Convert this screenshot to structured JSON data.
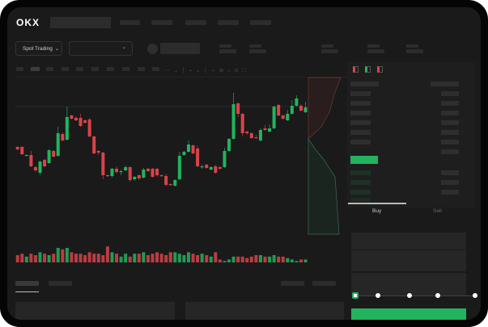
{
  "header": {
    "logo": "OKX"
  },
  "market": {
    "mode_label": "Spot Trading",
    "pair_dropdown": ""
  },
  "order_form": {
    "tabs": [
      {
        "label": "Buy",
        "active": true
      },
      {
        "label": "Sell",
        "active": false
      }
    ],
    "slider_level_percent": 0
  },
  "colors": {
    "up": "#22b35e",
    "down": "#d9434a",
    "background": "#1a1a1a"
  },
  "icons": [
    "chevron-down-icon",
    "orderbook-both-icon",
    "orderbook-bids-icon",
    "orderbook-asks-icon",
    "indicator-icon",
    "draw-icon",
    "camera-icon",
    "settings-icon",
    "fullscreen-icon"
  ],
  "chart_data": {
    "type": "candlestick",
    "title": "",
    "grid": false,
    "candles_ohlc": [
      [
        68,
        69,
        64,
        65
      ],
      [
        68,
        69,
        58,
        59
      ],
      [
        57,
        59,
        57,
        58
      ],
      [
        58,
        63,
        43,
        44
      ],
      [
        43,
        44,
        37,
        39
      ],
      [
        36,
        51,
        33,
        50
      ],
      [
        52,
        53,
        43,
        44
      ],
      [
        48,
        65,
        47,
        64
      ],
      [
        63,
        64,
        55,
        56
      ],
      [
        57,
        93,
        56,
        85
      ],
      [
        84,
        86,
        75,
        76
      ],
      [
        77,
        118,
        76,
        105
      ],
      [
        107,
        108,
        102,
        103
      ],
      [
        104,
        106,
        100,
        101
      ],
      [
        104,
        109,
        93,
        94
      ],
      [
        101,
        102,
        97,
        98
      ],
      [
        102,
        104,
        80,
        81
      ],
      [
        81,
        82,
        59,
        60
      ],
      [
        63,
        64,
        58,
        61
      ],
      [
        61,
        62,
        28,
        33
      ],
      [
        33,
        34,
        31,
        32
      ],
      [
        32,
        42,
        30,
        41
      ],
      [
        41,
        44,
        35,
        37
      ],
      [
        37,
        40,
        33,
        38
      ],
      [
        39,
        45,
        38,
        43
      ],
      [
        43,
        44,
        25,
        27
      ],
      [
        28,
        32,
        26,
        31
      ],
      [
        33,
        34,
        27,
        29
      ],
      [
        30,
        42,
        29,
        40
      ],
      [
        41,
        42,
        37,
        38
      ],
      [
        41,
        42,
        30,
        31
      ],
      [
        41,
        42,
        31,
        33
      ],
      [
        33,
        34,
        31,
        32
      ],
      [
        32,
        35,
        20,
        21
      ],
      [
        22,
        23,
        20,
        21
      ],
      [
        20,
        28,
        19,
        27
      ],
      [
        28,
        62,
        27,
        57
      ],
      [
        58,
        63,
        57,
        62
      ],
      [
        62,
        76,
        61,
        71
      ],
      [
        70,
        71,
        59,
        60
      ],
      [
        66,
        70,
        43,
        44
      ],
      [
        43,
        46,
        41,
        44
      ],
      [
        46,
        47,
        41,
        42
      ],
      [
        40,
        44,
        39,
        43
      ],
      [
        44,
        46,
        35,
        36
      ],
      [
        43,
        44,
        40,
        41
      ],
      [
        43,
        67,
        42,
        63
      ],
      [
        63,
        79,
        62,
        78
      ],
      [
        78,
        135,
        77,
        121
      ],
      [
        122,
        123,
        105,
        109
      ],
      [
        109,
        110,
        81,
        85
      ],
      [
        87,
        88,
        83,
        85
      ],
      [
        85,
        86,
        78,
        79
      ],
      [
        80,
        83,
        78,
        79
      ],
      [
        76,
        91,
        75,
        89
      ],
      [
        91,
        95,
        88,
        89
      ],
      [
        87,
        96,
        86,
        91
      ],
      [
        91,
        119,
        90,
        118
      ],
      [
        120,
        121,
        106,
        107
      ],
      [
        107,
        108,
        102,
        103
      ],
      [
        101,
        114,
        100,
        109
      ],
      [
        109,
        126,
        108,
        119
      ],
      [
        119,
        132,
        118,
        128
      ],
      [
        119,
        121,
        112,
        113
      ],
      [
        111,
        124,
        110,
        117
      ]
    ],
    "volume": [
      5,
      6,
      4,
      6,
      5,
      7,
      6,
      5,
      6,
      10,
      9,
      10,
      7,
      6,
      6,
      5,
      7,
      6,
      6,
      5,
      11,
      7,
      6,
      4,
      6,
      4,
      6,
      6,
      7,
      5,
      6,
      7,
      6,
      5,
      7,
      7,
      6,
      5,
      7,
      6,
      5,
      6,
      5,
      4,
      7,
      2,
      1,
      2,
      4,
      4,
      4,
      3,
      4,
      5,
      5,
      4,
      4,
      5,
      4,
      4,
      3,
      2,
      1,
      2,
      2
    ]
  }
}
